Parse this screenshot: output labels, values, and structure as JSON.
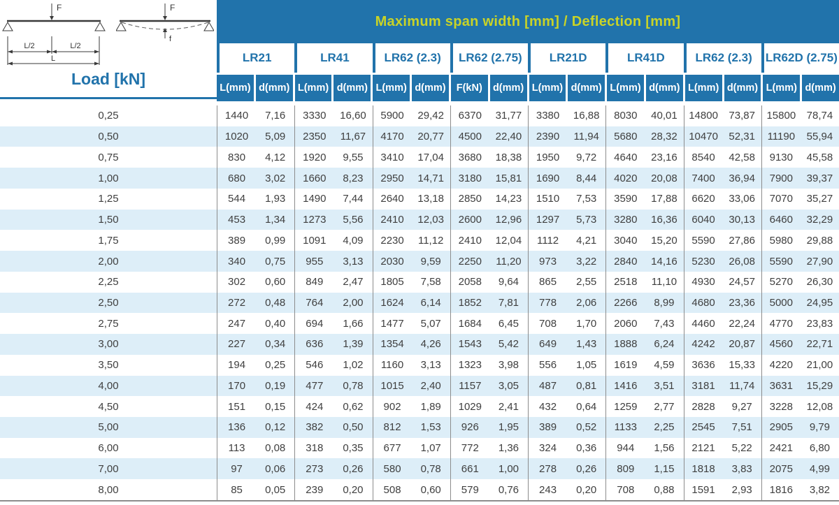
{
  "header": {
    "title": "Maximum span width [mm] / Deflection [mm]"
  },
  "load_column": {
    "title": "Load [kN]"
  },
  "diagram": {
    "force_label": "F",
    "force_label_2": "F",
    "deflection_label": "f",
    "half_span_label_left": "L/2",
    "half_span_label_right": "L/2",
    "span_label": "L"
  },
  "colors": {
    "header_blue": "#2173ab",
    "title_yellow": "#c9d327",
    "stripe_blue": "#ddeef8",
    "value_text": "#3f3f3f",
    "separator_gray": "#8c8c8c"
  },
  "chart_data": {
    "type": "table",
    "title": "Maximum span width [mm] / Deflection [mm]",
    "row_header": "Load [kN]",
    "column_groups": [
      {
        "label": "LR21",
        "columns": [
          "L(mm)",
          "d(mm)"
        ]
      },
      {
        "label": "LR41",
        "columns": [
          "L(mm)",
          "d(mm)"
        ]
      },
      {
        "label": "LR62 (2.3)",
        "columns": [
          "L(mm)",
          "d(mm)"
        ]
      },
      {
        "label": "LR62 (2.75)",
        "columns": [
          "F(kN)",
          "d(mm)"
        ]
      },
      {
        "label": "LR21D",
        "columns": [
          "L(mm)",
          "d(mm)"
        ]
      },
      {
        "label": "LR41D",
        "columns": [
          "L(mm)",
          "d(mm)"
        ]
      },
      {
        "label": "LR62 (2.3)",
        "columns": [
          "L(mm)",
          "d(mm)"
        ]
      },
      {
        "label": "LR62D (2.75)",
        "columns": [
          "L(mm)",
          "d(mm)"
        ]
      }
    ],
    "rows": [
      {
        "load": "0,25",
        "values": [
          "1440",
          "7,16",
          "3330",
          "16,60",
          "5900",
          "29,42",
          "6370",
          "31,77",
          "3380",
          "16,88",
          "8030",
          "40,01",
          "14800",
          "73,87",
          "15800",
          "78,74"
        ]
      },
      {
        "load": "0,50",
        "values": [
          "1020",
          "5,09",
          "2350",
          "11,67",
          "4170",
          "20,77",
          "4500",
          "22,40",
          "2390",
          "11,94",
          "5680",
          "28,32",
          "10470",
          "52,31",
          "11190",
          "55,94"
        ]
      },
      {
        "load": "0,75",
        "values": [
          "830",
          "4,12",
          "1920",
          "9,55",
          "3410",
          "17,04",
          "3680",
          "18,38",
          "1950",
          "9,72",
          "4640",
          "23,16",
          "8540",
          "42,58",
          "9130",
          "45,58"
        ]
      },
      {
        "load": "1,00",
        "values": [
          "680",
          "3,02",
          "1660",
          "8,23",
          "2950",
          "14,71",
          "3180",
          "15,81",
          "1690",
          "8,44",
          "4020",
          "20,08",
          "7400",
          "36,94",
          "7900",
          "39,37"
        ]
      },
      {
        "load": "1,25",
        "values": [
          "544",
          "1,93",
          "1490",
          "7,44",
          "2640",
          "13,18",
          "2850",
          "14,23",
          "1510",
          "7,53",
          "3590",
          "17,88",
          "6620",
          "33,06",
          "7070",
          "35,27"
        ]
      },
      {
        "load": "1,50",
        "values": [
          "453",
          "1,34",
          "1273",
          "5,56",
          "2410",
          "12,03",
          "2600",
          "12,96",
          "1297",
          "5,73",
          "3280",
          "16,36",
          "6040",
          "30,13",
          "6460",
          "32,29"
        ]
      },
      {
        "load": "1,75",
        "values": [
          "389",
          "0,99",
          "1091",
          "4,09",
          "2230",
          "11,12",
          "2410",
          "12,04",
          "1112",
          "4,21",
          "3040",
          "15,20",
          "5590",
          "27,86",
          "5980",
          "29,88"
        ]
      },
      {
        "load": "2,00",
        "values": [
          "340",
          "0,75",
          "955",
          "3,13",
          "2030",
          "9,59",
          "2250",
          "11,20",
          "973",
          "3,22",
          "2840",
          "14,16",
          "5230",
          "26,08",
          "5590",
          "27,90"
        ]
      },
      {
        "load": "2,25",
        "values": [
          "302",
          "0,60",
          "849",
          "2,47",
          "1805",
          "7,58",
          "2058",
          "9,64",
          "865",
          "2,55",
          "2518",
          "11,10",
          "4930",
          "24,57",
          "5270",
          "26,30"
        ]
      },
      {
        "load": "2,50",
        "values": [
          "272",
          "0,48",
          "764",
          "2,00",
          "1624",
          "6,14",
          "1852",
          "7,81",
          "778",
          "2,06",
          "2266",
          "8,99",
          "4680",
          "23,36",
          "5000",
          "24,95"
        ]
      },
      {
        "load": "2,75",
        "values": [
          "247",
          "0,40",
          "694",
          "1,66",
          "1477",
          "5,07",
          "1684",
          "6,45",
          "708",
          "1,70",
          "2060",
          "7,43",
          "4460",
          "22,24",
          "4770",
          "23,83"
        ]
      },
      {
        "load": "3,00",
        "values": [
          "227",
          "0,34",
          "636",
          "1,39",
          "1354",
          "4,26",
          "1543",
          "5,42",
          "649",
          "1,43",
          "1888",
          "6,24",
          "4242",
          "20,87",
          "4560",
          "22,71"
        ]
      },
      {
        "load": "3,50",
        "values": [
          "194",
          "0,25",
          "546",
          "1,02",
          "1160",
          "3,13",
          "1323",
          "3,98",
          "556",
          "1,05",
          "1619",
          "4,59",
          "3636",
          "15,33",
          "4220",
          "21,00"
        ]
      },
      {
        "load": "4,00",
        "values": [
          "170",
          "0,19",
          "477",
          "0,78",
          "1015",
          "2,40",
          "1157",
          "3,05",
          "487",
          "0,81",
          "1416",
          "3,51",
          "3181",
          "11,74",
          "3631",
          "15,29"
        ]
      },
      {
        "load": "4,50",
        "values": [
          "151",
          "0,15",
          "424",
          "0,62",
          "902",
          "1,89",
          "1029",
          "2,41",
          "432",
          "0,64",
          "1259",
          "2,77",
          "2828",
          "9,27",
          "3228",
          "12,08"
        ]
      },
      {
        "load": "5,00",
        "values": [
          "136",
          "0,12",
          "382",
          "0,50",
          "812",
          "1,53",
          "926",
          "1,95",
          "389",
          "0,52",
          "1133",
          "2,25",
          "2545",
          "7,51",
          "2905",
          "9,79"
        ]
      },
      {
        "load": "6,00",
        "values": [
          "113",
          "0,08",
          "318",
          "0,35",
          "677",
          "1,07",
          "772",
          "1,36",
          "324",
          "0,36",
          "944",
          "1,56",
          "2121",
          "5,22",
          "2421",
          "6,80"
        ]
      },
      {
        "load": "7,00",
        "values": [
          "97",
          "0,06",
          "273",
          "0,26",
          "580",
          "0,78",
          "661",
          "1,00",
          "278",
          "0,26",
          "809",
          "1,15",
          "1818",
          "3,83",
          "2075",
          "4,99"
        ]
      },
      {
        "load": "8,00",
        "values": [
          "85",
          "0,05",
          "239",
          "0,20",
          "508",
          "0,60",
          "579",
          "0,76",
          "243",
          "0,20",
          "708",
          "0,88",
          "1591",
          "2,93",
          "1816",
          "3,82"
        ]
      }
    ]
  }
}
